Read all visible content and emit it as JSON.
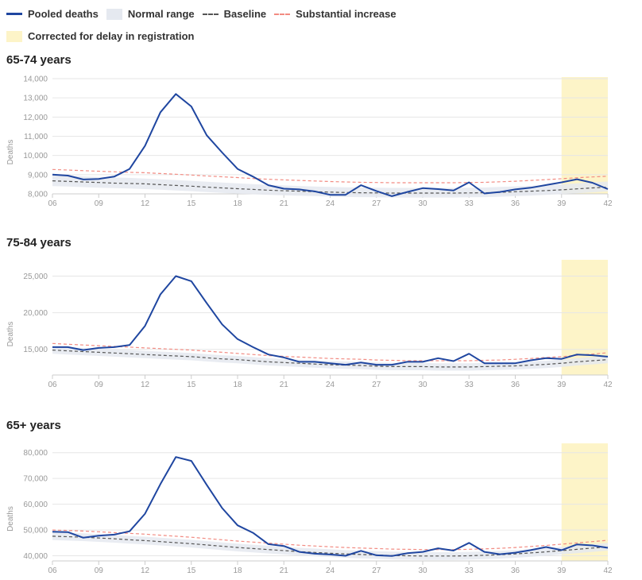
{
  "legend": {
    "pooled": "Pooled deaths",
    "normal": "Normal range",
    "baseline": "Baseline",
    "substantial": "Substantial increase",
    "corrected": "Corrected for delay in registration"
  },
  "colors": {
    "pooled": "#1f46a0",
    "band": "#e5e9f0",
    "baseline": "#555555",
    "substantial": "#f28b82",
    "corrected": "#fdf4c8",
    "grid": "#e6e6e6"
  },
  "chart_data": [
    {
      "type": "line",
      "title": "65-74 years",
      "ylabel": "Deaths",
      "ylim": [
        8000,
        14000
      ],
      "y_ticks": [
        "8,000",
        "9,000",
        "10,000",
        "11,000",
        "12,000",
        "13,000",
        "14,000"
      ],
      "y_tick_values": [
        8000,
        9000,
        10000,
        11000,
        12000,
        13000,
        14000
      ],
      "xlim": [
        6,
        42
      ],
      "x_ticks": [
        "06",
        "09",
        "12",
        "15",
        "18",
        "21",
        "24",
        "27",
        "30",
        "33",
        "36",
        "39",
        "42"
      ],
      "x_tick_values": [
        6,
        9,
        12,
        15,
        18,
        21,
        24,
        27,
        30,
        33,
        36,
        39,
        42
      ],
      "corrected_range": [
        39,
        42
      ],
      "x": [
        6,
        7,
        8,
        9,
        10,
        11,
        12,
        13,
        14,
        15,
        16,
        17,
        18,
        19,
        20,
        21,
        22,
        23,
        24,
        25,
        26,
        27,
        28,
        29,
        30,
        31,
        32,
        33,
        34,
        35,
        36,
        37,
        38,
        39,
        40,
        41,
        42
      ],
      "series": [
        {
          "name": "Pooled deaths",
          "values": [
            9000,
            8950,
            8750,
            8780,
            8900,
            9300,
            10500,
            12250,
            13200,
            12550,
            11050,
            10150,
            9300,
            8900,
            8450,
            8270,
            8230,
            8130,
            7950,
            7950,
            8450,
            8150,
            7880,
            8100,
            8300,
            8250,
            8180,
            8600,
            8020,
            8100,
            8230,
            8320,
            8460,
            8600,
            8760,
            8580,
            8250
          ]
        },
        {
          "name": "Baseline",
          "values": [
            8680,
            8650,
            8620,
            8590,
            8560,
            8540,
            8520,
            8480,
            8440,
            8400,
            8350,
            8310,
            8270,
            8230,
            8190,
            8160,
            8140,
            8110,
            8090,
            8070,
            8060,
            8050,
            8040,
            8040,
            8040,
            8040,
            8040,
            8050,
            8060,
            8080,
            8110,
            8140,
            8170,
            8210,
            8260,
            8310,
            8350
          ]
        },
        {
          "name": "Substantial increase",
          "values": [
            9270,
            9240,
            9210,
            9180,
            9150,
            9120,
            9100,
            9060,
            9020,
            8980,
            8930,
            8890,
            8850,
            8800,
            8760,
            8730,
            8700,
            8670,
            8640,
            8620,
            8600,
            8590,
            8580,
            8580,
            8580,
            8580,
            8580,
            8590,
            8600,
            8630,
            8660,
            8700,
            8740,
            8790,
            8840,
            8880,
            8920
          ]
        }
      ],
      "normal_range": {
        "lower": [
          8400,
          8380,
          8350,
          8320,
          8300,
          8280,
          8250,
          8220,
          8180,
          8140,
          8090,
          8050,
          8010,
          7980,
          7950,
          7920,
          7900,
          7880,
          7860,
          7840,
          7830,
          7820,
          7810,
          7810,
          7810,
          7810,
          7810,
          7820,
          7830,
          7850,
          7880,
          7910,
          7950,
          7990,
          8030,
          8080,
          8130
        ],
        "upper": [
          8970,
          8950,
          8910,
          8880,
          8850,
          8830,
          8800,
          8760,
          8720,
          8680,
          8630,
          8590,
          8550,
          8510,
          8470,
          8440,
          8410,
          8380,
          8360,
          8340,
          8330,
          8320,
          8310,
          8310,
          8310,
          8310,
          8310,
          8320,
          8330,
          8360,
          8390,
          8420,
          8460,
          8500,
          8550,
          8600,
          8640
        ]
      }
    },
    {
      "type": "line",
      "title": "75-84 years",
      "ylabel": "Deaths",
      "ylim": [
        11500,
        27000
      ],
      "y_ticks": [
        "15,000",
        "20,000",
        "25,000"
      ],
      "y_tick_values": [
        15000,
        20000,
        25000
      ],
      "xlim": [
        6,
        42
      ],
      "x_ticks": [
        "06",
        "09",
        "12",
        "15",
        "18",
        "21",
        "24",
        "27",
        "30",
        "33",
        "36",
        "39",
        "42"
      ],
      "x_tick_values": [
        6,
        9,
        12,
        15,
        18,
        21,
        24,
        27,
        30,
        33,
        36,
        39,
        42
      ],
      "corrected_range": [
        39,
        42
      ],
      "x": [
        6,
        7,
        8,
        9,
        10,
        11,
        12,
        13,
        14,
        15,
        16,
        17,
        18,
        19,
        20,
        21,
        22,
        23,
        24,
        25,
        26,
        27,
        28,
        29,
        30,
        31,
        32,
        33,
        34,
        35,
        36,
        37,
        38,
        39,
        40,
        41,
        42
      ],
      "series": [
        {
          "name": "Pooled deaths",
          "values": [
            15300,
            15300,
            14900,
            15200,
            15300,
            15600,
            18200,
            22500,
            25000,
            24300,
            21300,
            18400,
            16400,
            15300,
            14300,
            13900,
            13300,
            13300,
            13100,
            12900,
            13200,
            12900,
            12900,
            13300,
            13300,
            13800,
            13400,
            14400,
            13100,
            13100,
            13100,
            13500,
            13800,
            13700,
            14300,
            14200,
            14000
          ]
        },
        {
          "name": "Baseline",
          "values": [
            14900,
            14800,
            14700,
            14600,
            14500,
            14400,
            14300,
            14200,
            14100,
            14000,
            13850,
            13700,
            13600,
            13450,
            13300,
            13200,
            13100,
            13000,
            12900,
            12850,
            12800,
            12700,
            12650,
            12650,
            12650,
            12600,
            12600,
            12600,
            12650,
            12700,
            12750,
            12850,
            12950,
            13100,
            13300,
            13450,
            13600
          ]
        },
        {
          "name": "Substantial increase",
          "values": [
            15800,
            15700,
            15600,
            15500,
            15400,
            15300,
            15200,
            15100,
            15000,
            14900,
            14750,
            14600,
            14450,
            14300,
            14150,
            14050,
            13950,
            13850,
            13750,
            13700,
            13650,
            13550,
            13500,
            13450,
            13450,
            13450,
            13450,
            13450,
            13500,
            13550,
            13650,
            13750,
            13900,
            14000,
            14200,
            14350,
            14550
          ]
        }
      ],
      "normal_range": {
        "lower": [
          14400,
          14300,
          14200,
          14100,
          14000,
          13900,
          13800,
          13700,
          13600,
          13500,
          13350,
          13200,
          13100,
          12950,
          12800,
          12700,
          12600,
          12500,
          12400,
          12350,
          12300,
          12200,
          12150,
          12150,
          12150,
          12100,
          12100,
          12100,
          12150,
          12200,
          12250,
          12350,
          12450,
          12600,
          12800,
          12950,
          13100
        ],
        "upper": [
          15400,
          15300,
          15200,
          15100,
          15000,
          14900,
          14800,
          14700,
          14600,
          14500,
          14350,
          14200,
          14100,
          13950,
          13800,
          13700,
          13600,
          13500,
          13400,
          13350,
          13300,
          13200,
          13150,
          13150,
          13150,
          13100,
          13100,
          13100,
          13150,
          13200,
          13250,
          13350,
          13450,
          13600,
          13800,
          13950,
          14100
        ]
      }
    },
    {
      "type": "line",
      "title": "65+ years",
      "ylabel": "Deaths",
      "ylim": [
        38000,
        83000
      ],
      "y_ticks": [
        "40,000",
        "50,000",
        "60,000",
        "70,000",
        "80,000"
      ],
      "y_tick_values": [
        40000,
        50000,
        60000,
        70000,
        80000
      ],
      "xlim": [
        6,
        42
      ],
      "x_ticks": [
        "06",
        "09",
        "12",
        "15",
        "18",
        "21",
        "24",
        "27",
        "30",
        "33",
        "36",
        "39",
        "42"
      ],
      "x_tick_values": [
        6,
        9,
        12,
        15,
        18,
        21,
        24,
        27,
        30,
        33,
        36,
        39,
        42
      ],
      "corrected_range": [
        39,
        42
      ],
      "x": [
        6,
        7,
        8,
        9,
        10,
        11,
        12,
        13,
        14,
        15,
        16,
        17,
        18,
        19,
        20,
        21,
        22,
        23,
        24,
        25,
        26,
        27,
        28,
        29,
        30,
        31,
        32,
        33,
        34,
        35,
        36,
        37,
        38,
        39,
        40,
        41,
        42
      ],
      "series": [
        {
          "name": "Pooled deaths",
          "values": [
            49300,
            49200,
            47000,
            47800,
            48200,
            49500,
            56300,
            67800,
            78300,
            76800,
            67500,
            58500,
            51800,
            48900,
            44500,
            43800,
            41500,
            40800,
            40500,
            40000,
            41900,
            40200,
            39900,
            41000,
            41500,
            42900,
            42000,
            45000,
            41500,
            40600,
            41200,
            42200,
            43400,
            42200,
            44400,
            44000,
            43100
          ]
        },
        {
          "name": "Baseline",
          "values": [
            47600,
            47400,
            47200,
            46900,
            46600,
            46200,
            45900,
            45500,
            45100,
            44700,
            44200,
            43700,
            43200,
            42800,
            42400,
            42000,
            41600,
            41300,
            41000,
            40700,
            40500,
            40300,
            40100,
            40000,
            39900,
            39900,
            39900,
            40000,
            40200,
            40400,
            40700,
            41100,
            41500,
            42000,
            42500,
            43000,
            43500
          ]
        },
        {
          "name": "Substantial increase",
          "values": [
            50000,
            49800,
            49600,
            49300,
            49000,
            48700,
            48400,
            48000,
            47600,
            47200,
            46700,
            46200,
            45700,
            45300,
            44900,
            44500,
            44100,
            43800,
            43500,
            43200,
            43000,
            42800,
            42600,
            42500,
            42400,
            42400,
            42400,
            42500,
            42700,
            42900,
            43200,
            43600,
            44000,
            44500,
            45000,
            45500,
            46000
          ]
        }
      ],
      "normal_range": {
        "lower": [
          46100,
          45900,
          45700,
          45400,
          45100,
          44700,
          44400,
          44000,
          43600,
          43200,
          42700,
          42200,
          41700,
          41300,
          40900,
          40500,
          40100,
          39800,
          39500,
          39200,
          39000,
          38800,
          38600,
          38500,
          38400,
          38400,
          38400,
          38500,
          38700,
          38900,
          39200,
          39600,
          40000,
          40500,
          41000,
          41500,
          42000
        ],
        "upper": [
          49100,
          48900,
          48700,
          48400,
          48100,
          47700,
          47400,
          47000,
          46600,
          46200,
          45700,
          45200,
          44700,
          44300,
          43900,
          43500,
          43100,
          42800,
          42500,
          42200,
          42000,
          41800,
          41600,
          41500,
          41400,
          41400,
          41400,
          41500,
          41700,
          41900,
          42200,
          42600,
          43000,
          43500,
          44000,
          44500,
          45000
        ]
      }
    }
  ]
}
